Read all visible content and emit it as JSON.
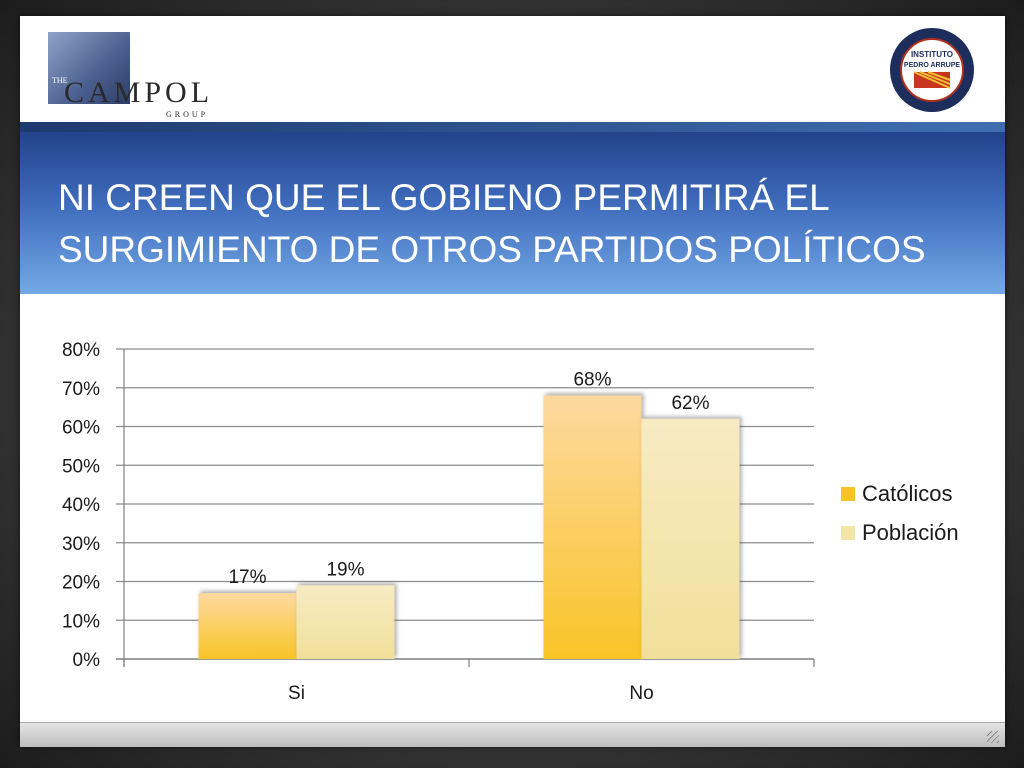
{
  "header": {
    "left_logo": {
      "name": "campol-logo",
      "text_the": "THE",
      "text_main": "CAMPOL",
      "text_group": "GROUP"
    },
    "right_logo": {
      "name": "instituto-pedro-arrupe-seal",
      "line1": "INSTITUTO",
      "line2": "PEDRO ARRUPE"
    }
  },
  "title": {
    "line1": "NI CREEN QUE EL GOBIENO PERMITIRÁ EL",
    "line2": "SURGIMIENTO DE OTROS PARTIDOS POLÍTICOS"
  },
  "colors": {
    "title_band_top": "#23438c",
    "title_band_bottom": "#74a9e6",
    "catolicos": "#f9c426",
    "poblacion": "#f2e5a6"
  },
  "chart_data": {
    "type": "bar",
    "categories": [
      "Si",
      "No"
    ],
    "series": [
      {
        "name": "Católicos",
        "values": [
          17,
          68
        ],
        "labels": [
          "17%",
          "68%"
        ]
      },
      {
        "name": "Población",
        "values": [
          19,
          62
        ],
        "labels": [
          "19%",
          "62%"
        ]
      }
    ],
    "ylim": [
      0,
      80
    ],
    "yticks": [
      "0%",
      "10%",
      "20%",
      "30%",
      "40%",
      "50%",
      "60%",
      "70%",
      "80%"
    ],
    "grid": true,
    "legend_position": "right"
  }
}
